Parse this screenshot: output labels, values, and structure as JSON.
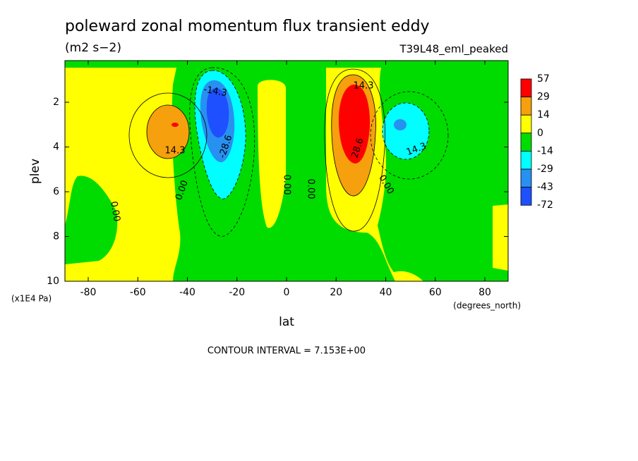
{
  "chart_data": {
    "type": "contour",
    "title": "poleward zonal momentum flux transient eddy",
    "subtitle": "(m2 s−2)",
    "run_label": "T39L48_eml_peaked",
    "xlabel": "lat",
    "ylabel": "plev",
    "x_unit": "(degrees_north)",
    "y_unit": "(x1E4 Pa)",
    "footnote": "CONTOUR INTERVAL = 7.153E+00",
    "xlim": [
      -89.4,
      89.4
    ],
    "xticks": [
      -80,
      -60,
      -40,
      -20,
      0,
      20,
      40,
      60,
      80
    ],
    "ylim": [
      0.14,
      10
    ],
    "yticks": [
      2,
      4,
      6,
      8,
      10
    ],
    "y_inverted": true,
    "colorbar": {
      "levels": [
        57,
        29,
        14,
        0,
        -14,
        -29,
        -43,
        -72
      ],
      "colors": [
        "#ff0000",
        "#f5a00c",
        "#ffff00",
        "#00dc00",
        "#00ffff",
        "#2890f0",
        "#1e50ff"
      ]
    },
    "contour_labels": [
      "14.3",
      "14.3",
      "14.3",
      "-14.3",
      "-28.6",
      "28.6",
      "0.00",
      "0.00",
      "0.00",
      "0.00",
      "0.00"
    ]
  }
}
